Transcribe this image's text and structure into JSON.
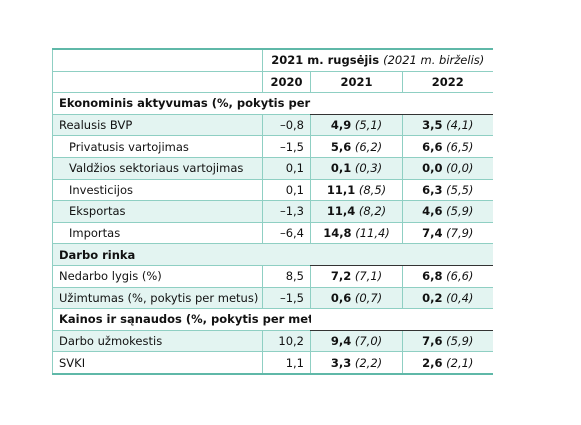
{
  "header": {
    "title_main": "2021 m. rugsėjis",
    "title_note": "(2021 m. birželis)",
    "columns": [
      "2020",
      "2021",
      "2022"
    ]
  },
  "sections": [
    {
      "title": "Ekonominis aktyvumas (%, pokytis per metus)",
      "rows": [
        {
          "label": "Realusis BVP",
          "indent": false,
          "cells": [
            "–0,8",
            "4,9",
            "(5,1)",
            "3,5",
            "(4,1)"
          ]
        },
        {
          "label": "Privatusis vartojimas",
          "indent": true,
          "cells": [
            "–1,5",
            "5,6",
            "(6,2)",
            "6,6",
            "(6,5)"
          ]
        },
        {
          "label": "Valdžios sektoriaus vartojimas",
          "indent": true,
          "cells": [
            "0,1",
            "0,1",
            "(0,3)",
            "0,0",
            "(0,0)"
          ]
        },
        {
          "label": "Investicijos",
          "indent": true,
          "cells": [
            "0,1",
            "11,1",
            "(8,5)",
            "6,3",
            "(5,5)"
          ]
        },
        {
          "label": "Eksportas",
          "indent": true,
          "cells": [
            "–1,3",
            "11,4",
            "(8,2)",
            "4,6",
            "(5,9)"
          ]
        },
        {
          "label": "Importas",
          "indent": true,
          "cells": [
            "–6,4",
            "14,8",
            "(11,4)",
            "7,4",
            "(7,9)"
          ]
        }
      ]
    },
    {
      "title": "Darbo rinka",
      "rows": [
        {
          "label": "Nedarbo lygis (%)",
          "indent": false,
          "cells": [
            "8,5",
            "7,2",
            "(7,1)",
            "6,8",
            "(6,6)"
          ]
        },
        {
          "label": "Užimtumas (%, pokytis per metus)",
          "indent": false,
          "cells": [
            "–1,5",
            "0,6",
            "(0,7)",
            "0,2",
            "(0,4)"
          ]
        }
      ]
    },
    {
      "title": "Kainos ir sąnaudos (%, pokytis per metus)",
      "rows": [
        {
          "label": "Darbo užmokestis",
          "indent": false,
          "cells": [
            "10,2",
            "9,4",
            "(7,0)",
            "7,6",
            "(5,9)"
          ]
        },
        {
          "label": "SVKI",
          "indent": false,
          "cells": [
            "1,1",
            "3,3",
            "(2,2)",
            "2,6",
            "(2,1)"
          ]
        }
      ]
    }
  ]
}
